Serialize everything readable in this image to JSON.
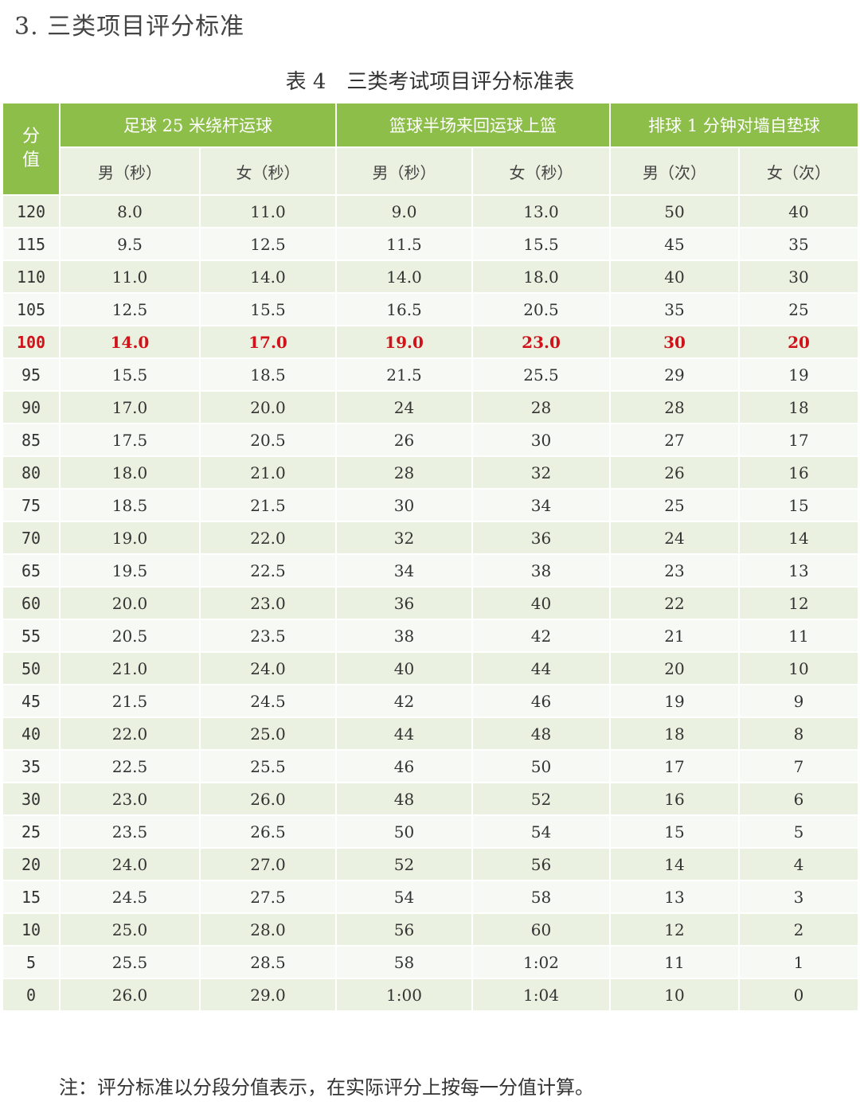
{
  "section_heading": "3. 三类项目评分标准",
  "caption": {
    "number": "表 4",
    "title": "三类考试项目评分标准表"
  },
  "table": {
    "score_header": [
      "分",
      "值"
    ],
    "groups": [
      "足球 25 米绕杆运球",
      "篮球半场来回运球上篮",
      "排球 1 分钟对墙自垫球"
    ],
    "subheaders": [
      "男（秒）",
      "女（秒）",
      "男（秒）",
      "女（秒）",
      "男（次）",
      "女（次）"
    ],
    "highlight_score": "100",
    "rows": [
      [
        "120",
        "8.0",
        "11.0",
        "9.0",
        "13.0",
        "50",
        "40"
      ],
      [
        "115",
        "9.5",
        "12.5",
        "11.5",
        "15.5",
        "45",
        "35"
      ],
      [
        "110",
        "11.0",
        "14.0",
        "14.0",
        "18.0",
        "40",
        "30"
      ],
      [
        "105",
        "12.5",
        "15.5",
        "16.5",
        "20.5",
        "35",
        "25"
      ],
      [
        "100",
        "14.0",
        "17.0",
        "19.0",
        "23.0",
        "30",
        "20"
      ],
      [
        "95",
        "15.5",
        "18.5",
        "21.5",
        "25.5",
        "29",
        "19"
      ],
      [
        "90",
        "17.0",
        "20.0",
        "24",
        "28",
        "28",
        "18"
      ],
      [
        "85",
        "17.5",
        "20.5",
        "26",
        "30",
        "27",
        "17"
      ],
      [
        "80",
        "18.0",
        "21.0",
        "28",
        "32",
        "26",
        "16"
      ],
      [
        "75",
        "18.5",
        "21.5",
        "30",
        "34",
        "25",
        "15"
      ],
      [
        "70",
        "19.0",
        "22.0",
        "32",
        "36",
        "24",
        "14"
      ],
      [
        "65",
        "19.5",
        "22.5",
        "34",
        "38",
        "23",
        "13"
      ],
      [
        "60",
        "20.0",
        "23.0",
        "36",
        "40",
        "22",
        "12"
      ],
      [
        "55",
        "20.5",
        "23.5",
        "38",
        "42",
        "21",
        "11"
      ],
      [
        "50",
        "21.0",
        "24.0",
        "40",
        "44",
        "20",
        "10"
      ],
      [
        "45",
        "21.5",
        "24.5",
        "42",
        "46",
        "19",
        "9"
      ],
      [
        "40",
        "22.0",
        "25.0",
        "44",
        "48",
        "18",
        "8"
      ],
      [
        "35",
        "22.5",
        "25.5",
        "46",
        "50",
        "17",
        "7"
      ],
      [
        "30",
        "23.0",
        "26.0",
        "48",
        "52",
        "16",
        "6"
      ],
      [
        "25",
        "23.5",
        "26.5",
        "50",
        "54",
        "15",
        "5"
      ],
      [
        "20",
        "24.0",
        "27.0",
        "52",
        "56",
        "14",
        "4"
      ],
      [
        "15",
        "24.5",
        "27.5",
        "54",
        "58",
        "13",
        "3"
      ],
      [
        "10",
        "25.0",
        "28.0",
        "56",
        "60",
        "12",
        "2"
      ],
      [
        "5",
        "25.5",
        "28.5",
        "58",
        "1:02",
        "11",
        "1"
      ],
      [
        "0",
        "26.0",
        "29.0",
        "1:00",
        "1:04",
        "10",
        "0"
      ]
    ]
  },
  "footnote": "注：评分标准以分段分值表示，在实际评分上按每一分值计算。",
  "colors": {
    "header_green": "#8dbe4a",
    "row_light": "#eaf1e0",
    "row_lighter": "#f7f9f4",
    "highlight_red": "#d0121b"
  }
}
